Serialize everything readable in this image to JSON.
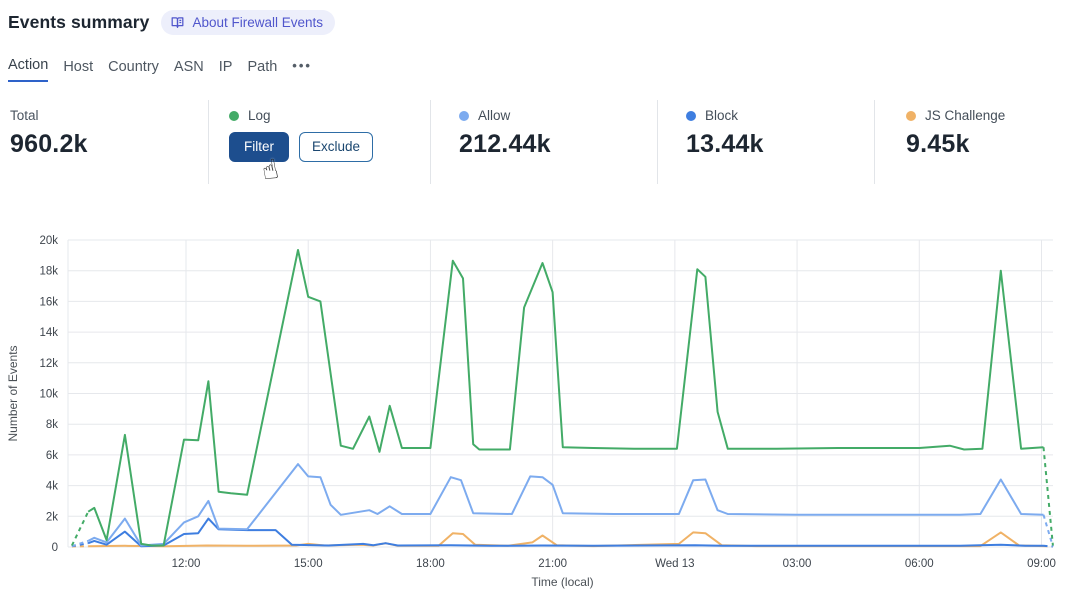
{
  "header": {
    "title": "Events summary",
    "about_badge": "About Firewall Events"
  },
  "tabs": {
    "items": [
      "Action",
      "Host",
      "Country",
      "ASN",
      "IP",
      "Path"
    ],
    "active": "Action",
    "more_label": "•••"
  },
  "stats": {
    "total": {
      "label": "Total",
      "value": "960.2k"
    },
    "items": [
      {
        "label": "Log",
        "color": "#43ab67",
        "hovered": true,
        "buttons": [
          "Filter",
          "Exclude"
        ]
      },
      {
        "label": "Allow",
        "color": "#7dabef",
        "value": "212.44k"
      },
      {
        "label": "Block",
        "color": "#3e7ee0",
        "value": "13.44k"
      },
      {
        "label": "JS Challenge",
        "color": "#f0b266",
        "value": "9.45k"
      }
    ]
  },
  "colors": {
    "accent": "#2e62c9",
    "filter_bg": "#1d4e8e",
    "exclude_border": "#2e6da6",
    "exclude_fg": "#1b4770",
    "badge_bg": "#edeffb",
    "badge_fg": "#5056cc",
    "grid": "#e6e8ec",
    "tick_text": "#3e454d",
    "axis_title": "#4a5056"
  },
  "chart_data": {
    "type": "line",
    "title": "",
    "xlabel": "Time (local)",
    "ylabel": "Number of Events",
    "x_unit": "hours (local clock, 24 = Wed 13 00:00)",
    "x_range": [
      9.1,
      33.27
    ],
    "ylim": [
      0,
      20000
    ],
    "grid": true,
    "legend_position": "stats-row-above-chart",
    "x_ticks": [
      {
        "h": 12,
        "label": "12:00"
      },
      {
        "h": 15,
        "label": "15:00"
      },
      {
        "h": 18,
        "label": "18:00"
      },
      {
        "h": 21,
        "label": "21:00"
      },
      {
        "h": 24,
        "label": "Wed 13"
      },
      {
        "h": 27,
        "label": "03:00"
      },
      {
        "h": 30,
        "label": "06:00"
      },
      {
        "h": 33,
        "label": "09:00"
      }
    ],
    "y_ticks": [
      {
        "v": 0,
        "label": "0"
      },
      {
        "v": 2000,
        "label": "2k"
      },
      {
        "v": 4000,
        "label": "4k"
      },
      {
        "v": 6000,
        "label": "6k"
      },
      {
        "v": 8000,
        "label": "8k"
      },
      {
        "v": 10000,
        "label": "10k"
      },
      {
        "v": 12000,
        "label": "12k"
      },
      {
        "v": 14000,
        "label": "14k"
      },
      {
        "v": 16000,
        "label": "16k"
      },
      {
        "v": 18000,
        "label": "18k"
      },
      {
        "v": 20000,
        "label": "20k"
      }
    ],
    "dashed_ends": true,
    "series": [
      {
        "name": "Log",
        "color": "#43ab67",
        "points": [
          [
            9.2,
            100
          ],
          [
            9.6,
            2300
          ],
          [
            9.75,
            2550
          ],
          [
            10.05,
            450
          ],
          [
            10.5,
            7300
          ],
          [
            10.9,
            200
          ],
          [
            11.15,
            100
          ],
          [
            11.45,
            100
          ],
          [
            11.95,
            7000
          ],
          [
            12.3,
            6950
          ],
          [
            12.55,
            10800
          ],
          [
            12.8,
            3600
          ],
          [
            13.1,
            3500
          ],
          [
            13.5,
            3400
          ],
          [
            14.75,
            19350
          ],
          [
            15.0,
            16300
          ],
          [
            15.3,
            16000
          ],
          [
            15.8,
            6600
          ],
          [
            16.1,
            6400
          ],
          [
            16.5,
            8500
          ],
          [
            16.75,
            6200
          ],
          [
            17.0,
            9200
          ],
          [
            17.3,
            6450
          ],
          [
            18.0,
            6450
          ],
          [
            18.55,
            18650
          ],
          [
            18.8,
            17500
          ],
          [
            19.05,
            6700
          ],
          [
            19.2,
            6350
          ],
          [
            19.95,
            6350
          ],
          [
            20.3,
            15600
          ],
          [
            20.75,
            18500
          ],
          [
            21.0,
            16600
          ],
          [
            21.25,
            6500
          ],
          [
            22.0,
            6450
          ],
          [
            23.0,
            6400
          ],
          [
            24.05,
            6400
          ],
          [
            24.55,
            18100
          ],
          [
            24.75,
            17600
          ],
          [
            25.05,
            8800
          ],
          [
            25.3,
            6400
          ],
          [
            26.5,
            6400
          ],
          [
            28.0,
            6450
          ],
          [
            30.0,
            6450
          ],
          [
            30.75,
            6600
          ],
          [
            31.1,
            6350
          ],
          [
            31.55,
            6400
          ],
          [
            32.0,
            18000
          ],
          [
            32.5,
            6400
          ],
          [
            33.05,
            6500
          ],
          [
            33.28,
            100
          ]
        ]
      },
      {
        "name": "Allow",
        "color": "#7dabef",
        "points": [
          [
            9.2,
            50
          ],
          [
            9.6,
            400
          ],
          [
            9.75,
            600
          ],
          [
            10.05,
            300
          ],
          [
            10.5,
            1850
          ],
          [
            10.9,
            100
          ],
          [
            11.45,
            200
          ],
          [
            11.95,
            1600
          ],
          [
            12.3,
            2000
          ],
          [
            12.55,
            3000
          ],
          [
            12.8,
            1200
          ],
          [
            13.5,
            1150
          ],
          [
            14.75,
            5400
          ],
          [
            15.0,
            4600
          ],
          [
            15.3,
            4550
          ],
          [
            15.55,
            2750
          ],
          [
            15.8,
            2100
          ],
          [
            16.5,
            2400
          ],
          [
            16.7,
            2150
          ],
          [
            17.0,
            2650
          ],
          [
            17.3,
            2150
          ],
          [
            18.0,
            2150
          ],
          [
            18.5,
            4550
          ],
          [
            18.75,
            4350
          ],
          [
            19.05,
            2200
          ],
          [
            20.0,
            2150
          ],
          [
            20.45,
            4600
          ],
          [
            20.75,
            4550
          ],
          [
            21.0,
            4050
          ],
          [
            21.25,
            2200
          ],
          [
            22.5,
            2150
          ],
          [
            24.1,
            2150
          ],
          [
            24.45,
            4350
          ],
          [
            24.75,
            4400
          ],
          [
            25.05,
            2400
          ],
          [
            25.3,
            2150
          ],
          [
            27.0,
            2100
          ],
          [
            29.0,
            2100
          ],
          [
            31.0,
            2100
          ],
          [
            31.5,
            2150
          ],
          [
            32.0,
            4400
          ],
          [
            32.5,
            2150
          ],
          [
            33.05,
            2100
          ],
          [
            33.28,
            30
          ]
        ]
      },
      {
        "name": "Block",
        "color": "#3e7ee0",
        "points": [
          [
            9.2,
            50
          ],
          [
            9.6,
            250
          ],
          [
            9.75,
            400
          ],
          [
            10.05,
            150
          ],
          [
            10.5,
            1000
          ],
          [
            10.9,
            50
          ],
          [
            11.45,
            100
          ],
          [
            11.95,
            850
          ],
          [
            12.3,
            900
          ],
          [
            12.55,
            1850
          ],
          [
            12.8,
            1150
          ],
          [
            13.5,
            1100
          ],
          [
            14.2,
            1100
          ],
          [
            14.6,
            150
          ],
          [
            15.5,
            100
          ],
          [
            16.35,
            200
          ],
          [
            16.6,
            120
          ],
          [
            16.9,
            250
          ],
          [
            17.2,
            100
          ],
          [
            18.5,
            120
          ],
          [
            19.5,
            80
          ],
          [
            20.75,
            100
          ],
          [
            22.0,
            80
          ],
          [
            24.5,
            120
          ],
          [
            25.2,
            80
          ],
          [
            28.0,
            80
          ],
          [
            31.0,
            80
          ],
          [
            32.0,
            150
          ],
          [
            32.6,
            80
          ],
          [
            33.05,
            80
          ],
          [
            33.28,
            30
          ]
        ]
      },
      {
        "name": "JS Challenge",
        "color": "#f0b266",
        "points": [
          [
            9.2,
            30
          ],
          [
            9.6,
            50
          ],
          [
            10.5,
            80
          ],
          [
            11.5,
            50
          ],
          [
            12.5,
            100
          ],
          [
            13.5,
            80
          ],
          [
            14.7,
            100
          ],
          [
            15.0,
            200
          ],
          [
            15.4,
            100
          ],
          [
            16.3,
            150
          ],
          [
            16.6,
            100
          ],
          [
            16.9,
            250
          ],
          [
            17.2,
            80
          ],
          [
            18.2,
            80
          ],
          [
            18.55,
            900
          ],
          [
            18.8,
            850
          ],
          [
            19.1,
            150
          ],
          [
            19.9,
            80
          ],
          [
            20.5,
            300
          ],
          [
            20.75,
            750
          ],
          [
            21.1,
            120
          ],
          [
            22.0,
            60
          ],
          [
            24.1,
            200
          ],
          [
            24.45,
            950
          ],
          [
            24.75,
            900
          ],
          [
            25.15,
            120
          ],
          [
            26.0,
            60
          ],
          [
            30.0,
            60
          ],
          [
            31.5,
            60
          ],
          [
            32.0,
            950
          ],
          [
            32.45,
            100
          ],
          [
            33.05,
            60
          ],
          [
            33.28,
            40
          ]
        ]
      }
    ]
  }
}
